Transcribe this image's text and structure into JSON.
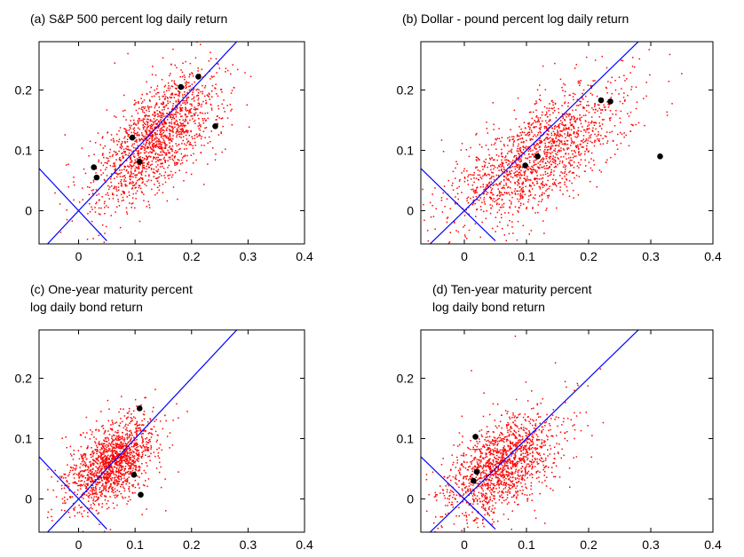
{
  "figure": {
    "panel_count": 4
  },
  "chart_data": [
    {
      "type": "scatter",
      "title": "(a) S&P 500 percent log daily return",
      "title_lines": [
        "(a) S&P 500 percent log daily return"
      ],
      "xlim": [
        -0.07,
        0.4
      ],
      "ylim": [
        -0.055,
        0.28
      ],
      "xticks": [
        0,
        0.1,
        0.2,
        0.3,
        0.4
      ],
      "xtick_labels": [
        "0",
        "0.1",
        "0.2",
        "0.3",
        "0.4"
      ],
      "yticks": [
        0,
        0.1,
        0.2
      ],
      "ytick_labels": [
        "0",
        "0.1",
        "0.2"
      ],
      "cloud": {
        "color": "#ff0000",
        "n": 1600,
        "cx": 0.14,
        "cy": 0.12,
        "spread_major": 0.07,
        "spread_minor": 0.032,
        "angle_deg": 45,
        "seed": 11
      },
      "highlight_points": [
        {
          "x": 0.027,
          "y": 0.072
        },
        {
          "x": 0.032,
          "y": 0.055
        },
        {
          "x": 0.095,
          "y": 0.121
        },
        {
          "x": 0.108,
          "y": 0.081
        },
        {
          "x": 0.181,
          "y": 0.205
        },
        {
          "x": 0.212,
          "y": 0.222
        },
        {
          "x": 0.242,
          "y": 0.14
        }
      ],
      "reference_lines": [
        {
          "x1": -0.07,
          "y1": -0.07,
          "x2": 0.285,
          "y2": 0.285,
          "color": "#0000ff"
        },
        {
          "x1": -0.07,
          "y1": 0.07,
          "x2": 0.05,
          "y2": -0.05,
          "color": "#0000ff"
        }
      ],
      "grid": false
    },
    {
      "type": "scatter",
      "title": "(b) Dollar - pound percent log daily return",
      "title_lines": [
        "(b) Dollar - pound percent log daily return"
      ],
      "xlim": [
        -0.07,
        0.4
      ],
      "ylim": [
        -0.055,
        0.28
      ],
      "xticks": [
        0,
        0.1,
        0.2,
        0.3,
        0.4
      ],
      "xtick_labels": [
        "0",
        "0.1",
        "0.2",
        "0.3",
        "0.4"
      ],
      "yticks": [
        0,
        0.1,
        0.2
      ],
      "ytick_labels": [
        "0",
        "0.1",
        "0.2"
      ],
      "cloud": {
        "color": "#ff0000",
        "n": 1600,
        "cx": 0.12,
        "cy": 0.09,
        "spread_major": 0.08,
        "spread_minor": 0.035,
        "angle_deg": 38,
        "seed": 23
      },
      "highlight_points": [
        {
          "x": 0.098,
          "y": 0.075
        },
        {
          "x": 0.118,
          "y": 0.09
        },
        {
          "x": 0.22,
          "y": 0.183
        },
        {
          "x": 0.235,
          "y": 0.181
        },
        {
          "x": 0.315,
          "y": 0.09
        }
      ],
      "reference_lines": [
        {
          "x1": -0.07,
          "y1": -0.07,
          "x2": 0.285,
          "y2": 0.285,
          "color": "#0000ff"
        },
        {
          "x1": -0.07,
          "y1": 0.07,
          "x2": 0.05,
          "y2": -0.05,
          "color": "#0000ff"
        }
      ],
      "grid": false
    },
    {
      "type": "scatter",
      "title": "(c) One-year maturity percent log daily bond return",
      "title_lines": [
        "(c) One-year maturity percent",
        "log daily bond return"
      ],
      "xlim": [
        -0.07,
        0.4
      ],
      "ylim": [
        -0.055,
        0.28
      ],
      "xticks": [
        0,
        0.1,
        0.2,
        0.3,
        0.4
      ],
      "xtick_labels": [
        "0",
        "0.1",
        "0.2",
        "0.3",
        "0.4"
      ],
      "yticks": [
        0,
        0.1,
        0.2
      ],
      "ytick_labels": [
        "0",
        "0.1",
        "0.2"
      ],
      "cloud": {
        "color": "#ff0000",
        "n": 1500,
        "cx": 0.06,
        "cy": 0.06,
        "spread_major": 0.045,
        "spread_minor": 0.026,
        "angle_deg": 40,
        "seed": 37
      },
      "highlight_points": [
        {
          "x": 0.108,
          "y": 0.15
        },
        {
          "x": 0.098,
          "y": 0.04
        },
        {
          "x": 0.11,
          "y": 0.007
        }
      ],
      "reference_lines": [
        {
          "x1": -0.07,
          "y1": -0.07,
          "x2": 0.285,
          "y2": 0.285,
          "color": "#0000ff"
        },
        {
          "x1": -0.07,
          "y1": 0.07,
          "x2": 0.05,
          "y2": -0.05,
          "color": "#0000ff"
        }
      ],
      "grid": false
    },
    {
      "type": "scatter",
      "title": "(d) Ten-year maturity percent log daily bond return",
      "title_lines": [
        "(d) Ten-year maturity percent",
        "log daily bond return"
      ],
      "xlim": [
        -0.07,
        0.4
      ],
      "ylim": [
        -0.055,
        0.28
      ],
      "xticks": [
        0,
        0.1,
        0.2,
        0.3,
        0.4
      ],
      "xtick_labels": [
        "0",
        "0.1",
        "0.2",
        "0.3",
        "0.4"
      ],
      "yticks": [
        0,
        0.1,
        0.2
      ],
      "ytick_labels": [
        "0",
        "0.1",
        "0.2"
      ],
      "cloud": {
        "color": "#ff0000",
        "n": 1500,
        "cx": 0.06,
        "cy": 0.055,
        "spread_major": 0.055,
        "spread_minor": 0.03,
        "angle_deg": 42,
        "seed": 51
      },
      "highlight_points": [
        {
          "x": 0.018,
          "y": 0.103
        },
        {
          "x": 0.02,
          "y": 0.045
        },
        {
          "x": 0.015,
          "y": 0.03
        }
      ],
      "reference_lines": [
        {
          "x1": -0.07,
          "y1": -0.07,
          "x2": 0.285,
          "y2": 0.285,
          "color": "#0000ff"
        },
        {
          "x1": -0.07,
          "y1": 0.07,
          "x2": 0.05,
          "y2": -0.05,
          "color": "#0000ff"
        }
      ],
      "grid": false
    }
  ],
  "colors": {
    "cloud": "#ff0000",
    "reference_line": "#0000ff",
    "highlight": "#000000",
    "axes": "#000000"
  }
}
